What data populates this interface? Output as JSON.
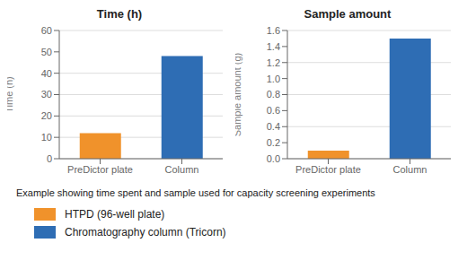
{
  "caption": "Example showing time spent and sample used for capacity screening experiments",
  "chart_data": [
    {
      "type": "bar",
      "title": "Time (h)",
      "ylabel": "Time (h)",
      "categories": [
        "PreDictor plate",
        "Column"
      ],
      "series": [
        {
          "name": "HTPD (96-well plate)",
          "color": "#F0922B",
          "values": [
            12,
            null
          ]
        },
        {
          "name": "Chromatography column (Tricorn)",
          "color": "#2E6DB4",
          "values": [
            null,
            48
          ]
        }
      ],
      "stacked": true,
      "ylim": [
        0,
        60
      ],
      "yticks": [
        0,
        10,
        20,
        30,
        40,
        50,
        60
      ],
      "grid": true,
      "legend": "lower left"
    },
    {
      "type": "bar",
      "title": "Sample amount",
      "ylabel": "Sample amount (g)",
      "categories": [
        "PreDictor plate",
        "Column"
      ],
      "series": [
        {
          "name": "HTPD (96-well plate)",
          "color": "#F0922B",
          "values": [
            0.1,
            null
          ]
        },
        {
          "name": "Chromatography column (Tricorn)",
          "color": "#2E6DB4",
          "values": [
            null,
            1.5
          ]
        }
      ],
      "stacked": true,
      "ylim": [
        0,
        1.6
      ],
      "yticks": [
        {
          "value": 0,
          "label": "0.0"
        },
        0.2,
        0.4,
        0.6,
        0.8,
        {
          "value": 1,
          "label": "1.0"
        },
        1.2,
        1.4,
        1.6
      ],
      "grid": true
    }
  ]
}
